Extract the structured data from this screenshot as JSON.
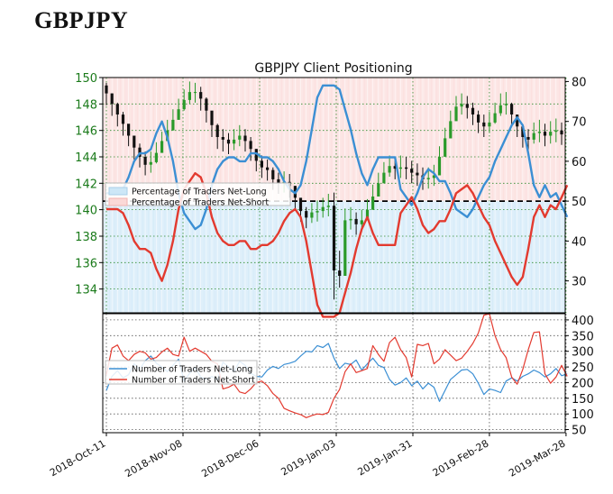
{
  "page": {
    "heading": "GBPJPY"
  },
  "colors": {
    "long_fill": "#cde7f7",
    "short_fill": "#fbd9d7",
    "long_line": "#3b8fd4",
    "short_line": "#e33a2f",
    "candle_up": "#2a9a2a",
    "candle_down": "#111111",
    "grid": "#2e8b2e",
    "left_axis_text": "#1a7a1a"
  },
  "chart_data": [
    {
      "type": "candlestick+line",
      "title": "GBPJPY Client Positioning",
      "dates": [
        "2018-Oct-11",
        "2018-Nov-08",
        "2018-Dec-06",
        "2019-Jan-03",
        "2019-Jan-31",
        "2019-Feb-28",
        "2019-Mar-28"
      ],
      "left_axis": {
        "ticks": [
          134,
          136,
          138,
          140,
          142,
          144,
          146,
          148,
          150
        ],
        "ylim": [
          132.2,
          150
        ]
      },
      "right_axis": {
        "ticks": [
          30,
          40,
          50,
          60,
          70,
          80
        ],
        "ylim": [
          22,
          81
        ]
      },
      "reference_line": 50,
      "legend": {
        "position": "left",
        "entries": [
          "Percentage of Traders Net-Long",
          "Percentage of Traders Net-Short"
        ]
      },
      "price_close": [
        148.8,
        148.0,
        147.2,
        146.5,
        145.6,
        144.7,
        144.0,
        143.4,
        143.6,
        144.3,
        145.2,
        146.0,
        146.8,
        147.6,
        148.3,
        148.9,
        148.9,
        148.4,
        147.5,
        146.4,
        145.5,
        145.3,
        145.0,
        145.3,
        145.6,
        145.2,
        144.6,
        143.7,
        143.2,
        143.0,
        142.3,
        142.0,
        142.1,
        141.8,
        140.9,
        139.9,
        139.4,
        139.8,
        139.9,
        140.2,
        140.3,
        135.4,
        135.0,
        139.2,
        139.3,
        138.9,
        139.2,
        140.0,
        141.0,
        142.0,
        142.8,
        143.3,
        143.1,
        143.2,
        143.1,
        142.8,
        142.6,
        142.3,
        142.4,
        142.6,
        144.0,
        145.4,
        146.7,
        147.8,
        148.0,
        147.7,
        147.2,
        146.6,
        146.3,
        146.6,
        147.3,
        147.9,
        148.0,
        147.2,
        146.3,
        145.5,
        145.3,
        145.8,
        145.9,
        145.6,
        145.9,
        146.0,
        145.7
      ],
      "price_high": [
        149.6,
        148.8,
        148.1,
        147.4,
        146.4,
        145.6,
        145.0,
        144.4,
        144.4,
        145.1,
        145.9,
        146.8,
        147.6,
        148.4,
        149.1,
        149.7,
        149.6,
        149.3,
        148.5,
        147.4,
        146.5,
        146.1,
        145.8,
        146.1,
        146.4,
        146.1,
        145.5,
        144.6,
        144.1,
        143.8,
        143.2,
        142.8,
        142.9,
        142.7,
        141.8,
        140.8,
        140.2,
        140.5,
        140.7,
        140.9,
        141.2,
        141.3,
        136.9,
        140.1,
        140.2,
        139.8,
        140.0,
        140.8,
        141.9,
        142.8,
        143.6,
        144.1,
        144.0,
        144.1,
        144.0,
        143.7,
        143.5,
        143.2,
        143.2,
        143.4,
        144.8,
        146.2,
        147.5,
        148.6,
        148.8,
        148.6,
        148.1,
        147.5,
        147.2,
        147.4,
        148.1,
        148.8,
        148.9,
        148.1,
        147.2,
        146.4,
        146.1,
        146.6,
        146.8,
        146.5,
        146.7,
        146.9,
        146.6
      ],
      "price_low": [
        147.9,
        147.1,
        146.3,
        145.6,
        144.8,
        143.8,
        143.2,
        142.6,
        142.8,
        143.5,
        144.4,
        145.2,
        146.0,
        146.8,
        147.5,
        148.0,
        148.1,
        147.5,
        146.6,
        145.5,
        144.6,
        144.4,
        144.2,
        144.5,
        144.8,
        144.4,
        143.7,
        142.9,
        142.4,
        142.2,
        141.5,
        141.2,
        141.3,
        140.9,
        140.0,
        139.1,
        138.6,
        139.0,
        139.1,
        139.4,
        139.5,
        133.2,
        134.1,
        135.4,
        138.5,
        138.1,
        138.4,
        139.2,
        140.1,
        141.2,
        142.0,
        142.5,
        142.3,
        142.4,
        142.3,
        142.0,
        141.8,
        141.5,
        141.6,
        141.8,
        143.2,
        144.6,
        145.9,
        147.0,
        147.2,
        146.9,
        146.4,
        145.8,
        145.5,
        145.8,
        146.5,
        147.1,
        147.2,
        146.4,
        145.5,
        144.7,
        144.5,
        145.0,
        145.1,
        144.8,
        145.0,
        145.1,
        144.9
      ],
      "pct_net_long": [
        52,
        52,
        52,
        53,
        56,
        60,
        62,
        62,
        63,
        67,
        70,
        66,
        60,
        52,
        47,
        45,
        43,
        44,
        48,
        54,
        58,
        60,
        61,
        61,
        60,
        60,
        62,
        62,
        61,
        61,
        60,
        58,
        55,
        53,
        52,
        54,
        60,
        68,
        76,
        79,
        79,
        79,
        78,
        73,
        68,
        62,
        57,
        54,
        58,
        61,
        61,
        61,
        61,
        53,
        51,
        49,
        52,
        56,
        58,
        57,
        55,
        55,
        52,
        48,
        47,
        46,
        48,
        51,
        54,
        56,
        60,
        63,
        66,
        69,
        71,
        69,
        62,
        54,
        51,
        54,
        51,
        52,
        49,
        46
      ],
      "pct_net_short": [
        48,
        48,
        48,
        47,
        44,
        40,
        38,
        38,
        37,
        33,
        30,
        34,
        40,
        48,
        53,
        55,
        57,
        56,
        52,
        46,
        42,
        40,
        39,
        39,
        40,
        40,
        38,
        38,
        39,
        39,
        40,
        42,
        45,
        47,
        48,
        46,
        40,
        32,
        24,
        21,
        21,
        21,
        22,
        27,
        32,
        38,
        43,
        46,
        42,
        39,
        39,
        39,
        39,
        47,
        49,
        51,
        48,
        44,
        42,
        43,
        45,
        45,
        48,
        52,
        53,
        54,
        52,
        49,
        46,
        44,
        40,
        37,
        34,
        31,
        29,
        31,
        38,
        46,
        49,
        46,
        49,
        48,
        51,
        54
      ]
    },
    {
      "type": "line",
      "y_ticks": [
        50,
        100,
        150,
        200,
        250,
        300,
        350,
        400
      ],
      "ylim": [
        40,
        420
      ],
      "legend": {
        "position": "left",
        "entries": [
          "Number of Traders Net-Long",
          "Number of Traders Net-Short"
        ]
      },
      "series": [
        {
          "name": "Number of Traders Net-Long",
          "values": [
            175,
            220,
            238,
            215,
            225,
            260,
            242,
            270,
            285,
            262,
            250,
            235,
            255,
            275,
            205,
            230,
            248,
            218,
            210,
            220,
            208,
            265,
            250,
            235,
            268,
            255,
            230,
            220,
            218,
            240,
            252,
            245,
            258,
            262,
            268,
            285,
            300,
            298,
            318,
            312,
            325,
            278,
            245,
            262,
            258,
            272,
            240,
            260,
            278,
            255,
            248,
            210,
            192,
            200,
            215,
            190,
            205,
            180,
            198,
            185,
            140,
            175,
            210,
            225,
            240,
            242,
            228,
            198,
            162,
            180,
            175,
            168,
            205,
            215,
            205,
            220,
            228,
            240,
            232,
            218,
            228,
            245,
            222,
            228
          ]
        },
        {
          "name": "Number of Traders Net-Short",
          "values": [
            225,
            310,
            320,
            285,
            270,
            290,
            300,
            295,
            275,
            280,
            298,
            310,
            290,
            285,
            345,
            300,
            310,
            300,
            290,
            268,
            260,
            180,
            185,
            195,
            170,
            165,
            180,
            200,
            205,
            190,
            165,
            150,
            118,
            110,
            103,
            98,
            88,
            95,
            100,
            98,
            105,
            150,
            178,
            235,
            260,
            232,
            238,
            245,
            318,
            290,
            268,
            328,
            345,
            305,
            280,
            218,
            322,
            318,
            325,
            260,
            275,
            305,
            288,
            270,
            278,
            300,
            325,
            358,
            415,
            420,
            350,
            305,
            280,
            218,
            195,
            242,
            305,
            360,
            362,
            228,
            198,
            218,
            255,
            220
          ]
        }
      ]
    }
  ]
}
